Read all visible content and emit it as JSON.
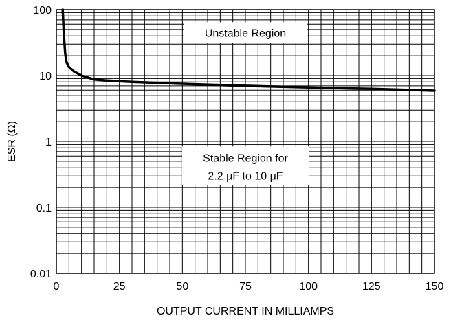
{
  "chart_data": {
    "type": "line",
    "title": "",
    "xlabel": "OUTPUT CURRENT IN MILLIAMPS",
    "ylabel": "ESR (Ω)",
    "xlim": [
      0,
      150
    ],
    "ylim": [
      0.01,
      100
    ],
    "yscale": "log",
    "grid": true,
    "x_ticks": [
      0,
      25,
      50,
      75,
      100,
      125,
      150
    ],
    "x_tick_labels": [
      "0",
      "25",
      "50",
      "75",
      "100",
      "125",
      "150"
    ],
    "y_ticks": [
      0.01,
      0.1,
      1,
      10,
      100
    ],
    "y_tick_labels": [
      "0.01",
      "0.1",
      "1",
      "10",
      "100"
    ],
    "series": [
      {
        "x": [
          2.5,
          3,
          3.5,
          4,
          5,
          7,
          10,
          15,
          20,
          30,
          50,
          75,
          100,
          125,
          150
        ],
        "y": [
          100,
          40,
          22,
          16,
          13.5,
          11.5,
          10,
          8.7,
          8.4,
          8,
          7.5,
          7,
          6.6,
          6.3,
          5.9
        ]
      }
    ],
    "annotations": [
      {
        "text": "Unstable Region",
        "x": 75,
        "y": 45
      },
      {
        "lines": [
          "Stable Region for",
          "2.2 μF to 10 μF"
        ],
        "x": 75,
        "y": 0.45
      }
    ]
  }
}
